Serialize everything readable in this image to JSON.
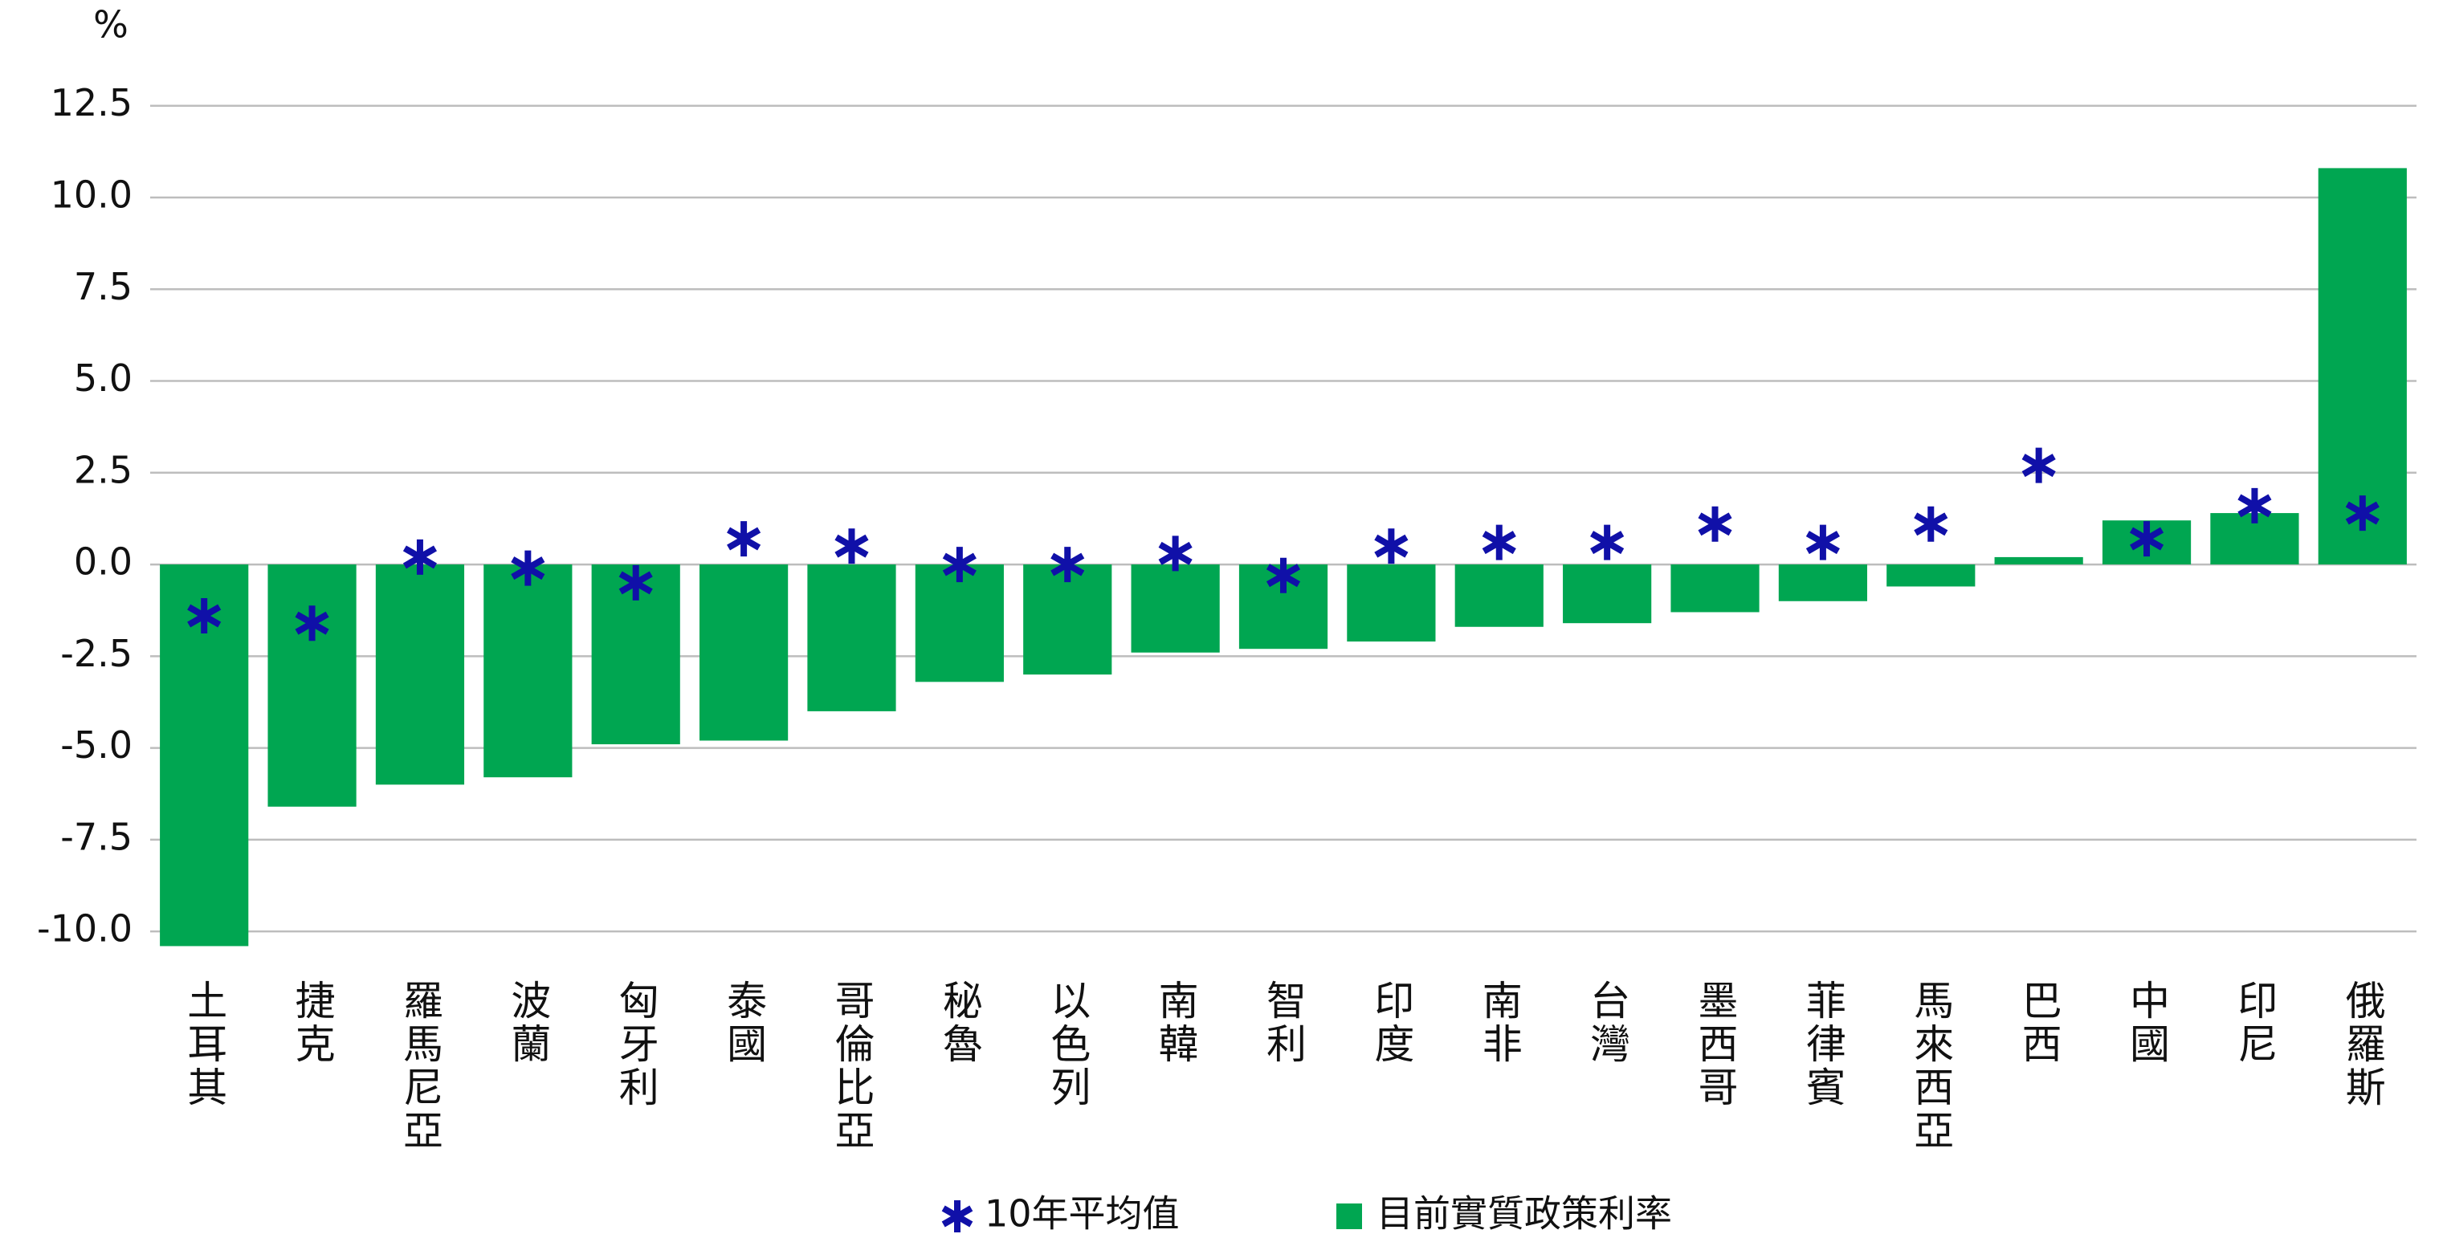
{
  "chart_data": {
    "type": "bar_marker",
    "ylabel": "%",
    "categories": [
      "土耳其",
      "捷克",
      "羅馬尼亞",
      "波蘭",
      "匈牙利",
      "泰國",
      "哥倫比亞",
      "秘魯",
      "以色列",
      "南韓",
      "智利",
      "印度",
      "南非",
      "台灣",
      "墨西哥",
      "菲律賓",
      "馬來西亞",
      "巴西",
      "中國",
      "印尼",
      "俄羅斯"
    ],
    "series": [
      {
        "name": "10年平均值",
        "color": "#1010a8",
        "marker": "asterisk",
        "values": [
          -1.4,
          -1.6,
          0.2,
          -0.1,
          -0.5,
          0.7,
          0.5,
          0.0,
          0.0,
          0.3,
          -0.3,
          0.5,
          0.6,
          0.6,
          1.1,
          0.6,
          1.1,
          2.7,
          0.7,
          1.6,
          1.4
        ]
      },
      {
        "name": "目前實質政策利率",
        "color": "#00a651",
        "marker": "bar",
        "values": [
          -10.4,
          -6.6,
          -6.0,
          -5.8,
          -4.9,
          -4.8,
          -4.0,
          -3.2,
          -3.0,
          -2.4,
          -2.3,
          -2.1,
          -1.7,
          -1.6,
          -1.3,
          -1.0,
          -0.6,
          0.2,
          1.2,
          1.4,
          10.8
        ]
      }
    ],
    "ylim": [
      -10.5,
      13.5
    ],
    "yticks": [
      12.5,
      {
        "value": 10,
        "label": "10.0"
      },
      7.5,
      {
        "value": 5,
        "label": "5.0"
      },
      2.5,
      {
        "value": 0,
        "label": "0.0"
      },
      -2.5,
      {
        "value": -5,
        "label": "-5.0"
      },
      -7.5,
      {
        "value": -10,
        "label": "-10.0"
      }
    ],
    "grid": true
  }
}
